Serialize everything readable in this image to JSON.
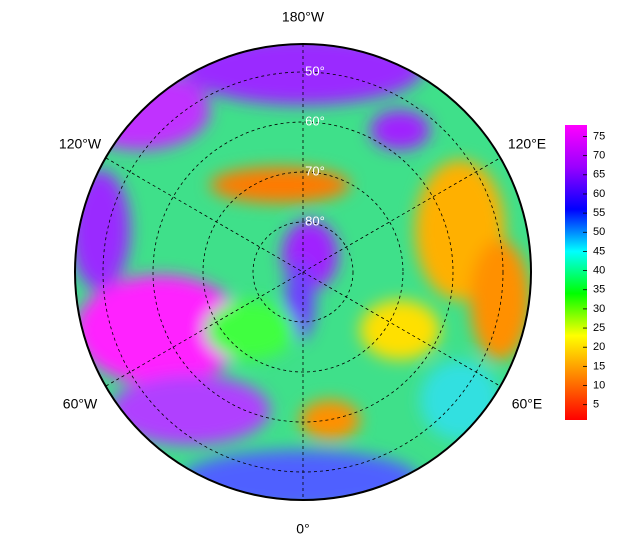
{
  "map": {
    "longitude_labels": [
      "180°W",
      "120°W",
      "120°E",
      "60°W",
      "60°E",
      "0°"
    ],
    "latitude_labels": [
      "50°",
      "60°",
      "70°",
      "80°"
    ],
    "colorbar": {
      "clim": [
        1,
        78
      ],
      "ticks": [
        5,
        10,
        15,
        20,
        25,
        30,
        35,
        40,
        45,
        50,
        55,
        60,
        65,
        70,
        75
      ],
      "colormap": [
        "#ff0000",
        "#ff8000",
        "#ffff00",
        "#00ff00",
        "#00ffff",
        "#0000ff",
        "#9900ff",
        "#ff00ff"
      ]
    }
  }
}
